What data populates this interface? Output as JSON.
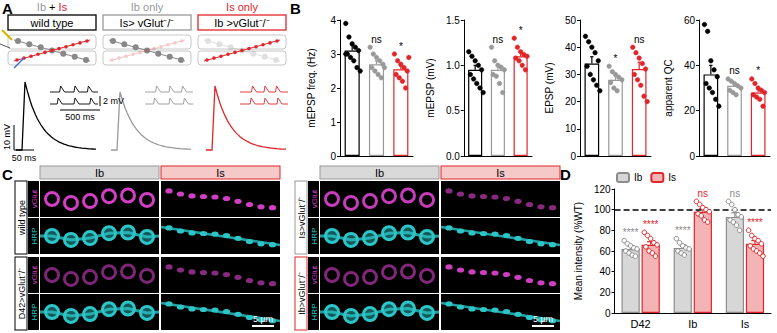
{
  "panel_labels": [
    "A",
    "B",
    "C",
    "D"
  ],
  "panel_A": {
    "conditions": [
      {
        "header": [
          {
            "text": "Ib",
            "color": "#999999"
          },
          {
            "text": " + ",
            "color": "#000000"
          },
          {
            "text": "Is",
            "color": "#e0262b"
          }
        ],
        "box": "wild type",
        "color": "#000000"
      },
      {
        "header": [
          {
            "text": "Ib only",
            "color": "#999999"
          }
        ],
        "box": "Is> vGlut⁻/⁻",
        "color": "#999999"
      },
      {
        "header": [
          {
            "text": "Is only",
            "color": "#e0262b"
          }
        ],
        "box": "Ib >vGlut⁻/⁻",
        "color": "#e0262b"
      }
    ],
    "scale_bars": {
      "mini_voltage": "2 mV",
      "mini_time": "500 ms",
      "voltage": "10 mV",
      "time": "50 ms"
    }
  },
  "chart_data": [
    {
      "type": "bar",
      "ylabel": "mEPSP freq. (Hz)",
      "categories": [
        null,
        null,
        null
      ],
      "values": [
        3.1,
        2.7,
        2.55
      ],
      "errors": [
        0.15,
        0.1,
        0.1
      ],
      "colors": [
        "#000000",
        "#999999",
        "#e0262b"
      ],
      "points": [
        [
          3.9,
          3.5,
          3.3,
          3.2,
          3.1,
          3.0,
          2.9,
          2.8,
          2.6,
          2.5,
          3.0
        ],
        [
          3.2,
          3.0,
          2.9,
          2.8,
          2.7,
          2.6,
          2.5,
          2.4,
          2.3,
          2.6
        ],
        [
          3.0,
          2.8,
          2.7,
          2.6,
          2.5,
          2.4,
          2.3,
          2.2,
          2.0,
          2.9
        ]
      ],
      "annotations": [
        null,
        "ns",
        "*"
      ],
      "ylim": [
        0,
        4
      ],
      "yticks": [
        0,
        1,
        2,
        3,
        4
      ],
      "grid": false,
      "tick_labels": "y"
    },
    {
      "type": "bar",
      "ylabel": "mEPSP (mV)",
      "categories": [
        null,
        null,
        null
      ],
      "values": [
        0.95,
        0.95,
        1.1
      ],
      "errors": [
        0.05,
        0.05,
        0.04
      ],
      "colors": [
        "#000000",
        "#999999",
        "#e0262b"
      ],
      "points": [
        [
          1.15,
          1.1,
          1.05,
          1.0,
          0.95,
          0.9,
          0.85,
          0.8,
          0.75,
          0.7
        ],
        [
          1.2,
          1.05,
          1.0,
          0.98,
          0.95,
          0.9,
          0.88,
          0.8,
          0.7
        ],
        [
          1.3,
          1.2,
          1.15,
          1.12,
          1.1,
          1.08,
          1.05,
          1.0,
          0.95
        ]
      ],
      "annotations": [
        null,
        "ns",
        "*"
      ],
      "ylim": [
        0,
        1.5
      ],
      "yticks": [
        {
          "value": 0,
          "label": "0.0"
        },
        {
          "value": 0.5,
          "label": "0.5"
        },
        {
          "value": 1,
          "label": "1.0"
        },
        {
          "value": 1.5,
          "label": "1.5"
        }
      ],
      "grid": false,
      "tick_labels": "y"
    },
    {
      "type": "bar",
      "ylabel": "EPSP (mV)",
      "categories": [
        null,
        null,
        null
      ],
      "values": [
        34,
        28,
        32
      ],
      "errors": [
        2.5,
        1.5,
        2.5
      ],
      "colors": [
        "#000000",
        "#999999",
        "#e0262b"
      ],
      "points": [
        [
          44,
          42,
          40,
          38,
          35,
          33,
          30,
          28,
          26,
          24
        ],
        [
          33,
          31,
          30,
          29,
          28,
          27,
          25,
          24
        ],
        [
          40,
          38,
          36,
          34,
          32,
          30,
          28,
          26,
          22,
          20
        ]
      ],
      "annotations": [
        null,
        "*",
        "ns"
      ],
      "ylim": [
        0,
        50
      ],
      "yticks": [
        0,
        10,
        20,
        30,
        40,
        50
      ],
      "grid": false,
      "tick_labels": "y"
    },
    {
      "type": "bar",
      "ylabel": "apparent QC",
      "categories": [
        null,
        null,
        null
      ],
      "values": [
        36,
        31,
        28
      ],
      "errors": [
        4,
        1,
        1.5
      ],
      "colors": [
        "#000000",
        "#999999",
        "#e0262b"
      ],
      "points": [
        [
          58,
          55,
          42,
          38,
          35,
          32,
          30,
          28,
          25,
          22
        ],
        [
          34,
          33,
          32,
          31,
          30,
          29,
          28,
          27
        ],
        [
          34,
          32,
          30,
          29,
          28,
          27,
          26,
          25,
          22
        ]
      ],
      "annotations": [
        null,
        "ns",
        "*"
      ],
      "ylim": [
        0,
        60
      ],
      "yticks": [
        0,
        20,
        40,
        60
      ],
      "grid": false,
      "tick_labels": "y"
    },
    {
      "type": "bar",
      "ylabel": "Mean intensity (%WT)",
      "categories": [
        "D42",
        "Ib",
        "Is"
      ],
      "series": [
        {
          "name": "Ib",
          "color": "#8c8c8c",
          "values": [
            62,
            63,
            93
          ],
          "errors": [
            3,
            3,
            4
          ],
          "points": [
            [
              70,
              67,
              65,
              63,
              62,
              60,
              58,
              56,
              55
            ],
            [
              72,
              68,
              65,
              63,
              62,
              60,
              58,
              56
            ],
            [
              108,
              105,
              100,
              95,
              93,
              90,
              88,
              85,
              80
            ]
          ],
          "annotations": [
            "****",
            "****",
            "ns"
          ]
        },
        {
          "name": "Is",
          "color": "#e0262b",
          "values": [
            66,
            98,
            67
          ],
          "errors": [
            3,
            3,
            3
          ],
          "points": [
            [
              78,
              75,
              72,
              68,
              66,
              64,
              60,
              58,
              55
            ],
            [
              108,
              105,
              102,
              100,
              98,
              96,
              94,
              90,
              88
            ],
            [
              80,
              75,
              72,
              70,
              67,
              65,
              62,
              60,
              58,
              55
            ]
          ],
          "annotations": [
            "****",
            "ns",
            "****"
          ]
        }
      ],
      "reference": 100,
      "ylim": [
        0,
        120
      ],
      "yticks": [
        0,
        20,
        40,
        60,
        80,
        100,
        120
      ],
      "grid": false,
      "legend": "upper left",
      "tick_labels": true
    }
  ],
  "panel_C": {
    "columns": [
      {
        "name": "Ib",
        "color": "#999999",
        "fill": "#d9d9d9"
      },
      {
        "name": "Is",
        "color": "#e0262b",
        "fill": "#f6c9c9"
      }
    ],
    "channels": [
      {
        "name": "vGlut",
        "color": "#d23fc4"
      },
      {
        "name": "HRP",
        "color": "#2cc6c8"
      }
    ],
    "groups": [
      {
        "rows": [
          {
            "label": "wild type",
            "color": "#000000"
          },
          {
            "label": "D42>vGlut⁻/⁻",
            "color": "#000000"
          }
        ]
      },
      {
        "rows": [
          {
            "label": "Is>vGlut⁻/⁻",
            "color": "#999999"
          },
          {
            "label": "Ib>vGlut⁻/⁻",
            "color": "#e0262b"
          }
        ]
      }
    ],
    "scale_bar": "5 µm"
  }
}
